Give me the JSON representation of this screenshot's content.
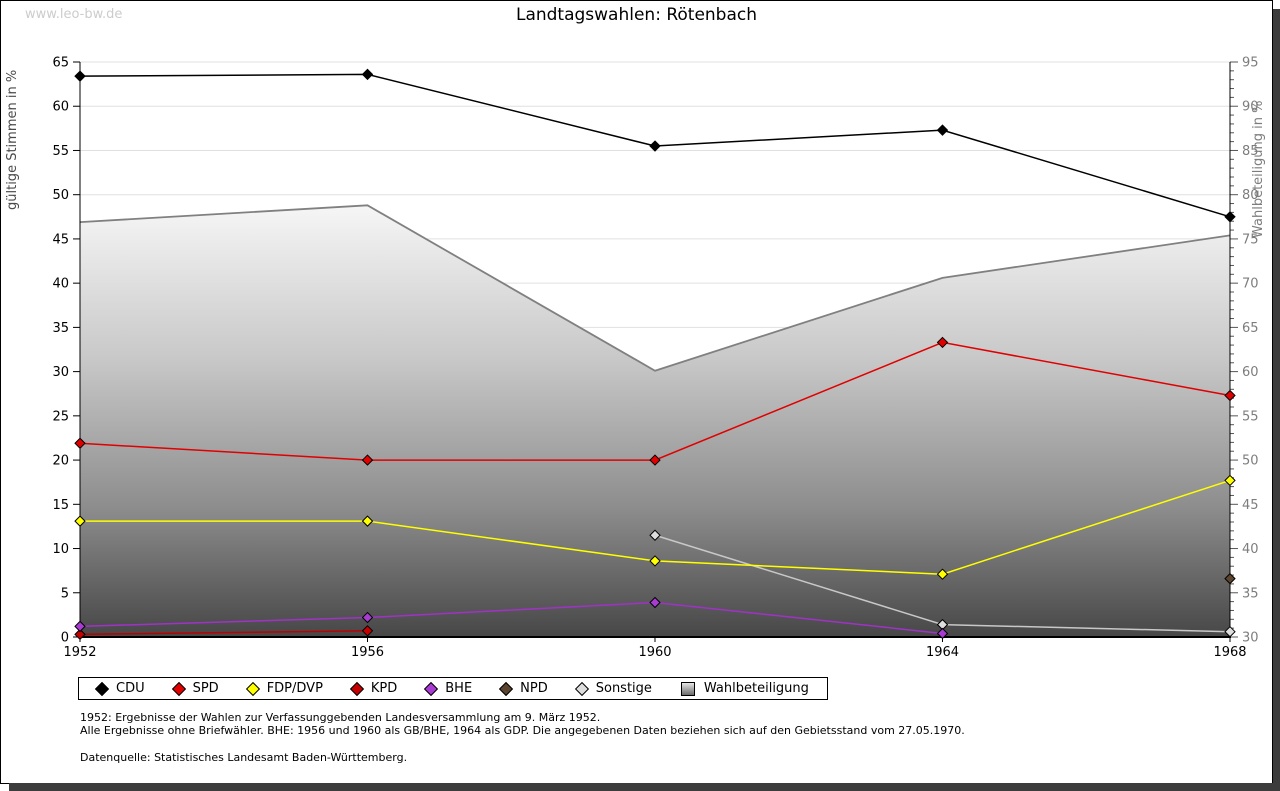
{
  "page": {
    "watermark": "www.leo-bw.de",
    "title": "Landtagswahlen: Rötenbach"
  },
  "chart_data": {
    "type": "line",
    "title": "Landtagswahlen: Rötenbach",
    "x": [
      1952,
      1956,
      1960,
      1964,
      1968
    ],
    "left_axis": {
      "label": "gültige Stimmen in %",
      "min": 0,
      "max": 65,
      "tick_step": 5
    },
    "right_axis": {
      "label": "Wahlbeteiligung in %",
      "min": 30,
      "max": 95,
      "tick_step": 5,
      "minor_tick_step": 1
    },
    "grid": true,
    "legend_position": "bottom",
    "series": [
      {
        "name": "CDU",
        "axis": "left",
        "color": "#000000",
        "marker_fill": "#000000",
        "values": [
          63.4,
          63.6,
          55.5,
          57.3,
          47.5
        ]
      },
      {
        "name": "SPD",
        "axis": "left",
        "color": "#e00000",
        "marker_fill": "#e00000",
        "values": [
          21.9,
          20.0,
          20.0,
          33.3,
          27.3
        ]
      },
      {
        "name": "FDP/DVP",
        "axis": "left",
        "color": "#ffff00",
        "marker_fill": "#ffff00",
        "values": [
          13.1,
          13.1,
          8.6,
          7.1,
          17.7
        ]
      },
      {
        "name": "KPD",
        "axis": "left",
        "color": "#bb0000",
        "marker_fill": "#c40000",
        "values": [
          0.3,
          0.7,
          null,
          null,
          null
        ]
      },
      {
        "name": "BHE",
        "axis": "left",
        "color": "#a032c8",
        "marker_fill": "#a83cd2",
        "values": [
          1.2,
          2.2,
          3.9,
          0.4,
          null
        ]
      },
      {
        "name": "NPD",
        "axis": "left",
        "color": "#5c442e",
        "marker_fill": "#5c442e",
        "values": [
          null,
          null,
          null,
          null,
          6.6
        ]
      },
      {
        "name": "Sonstige",
        "axis": "left",
        "color": "#c8c8c8",
        "marker_fill": "#dedede",
        "values": [
          null,
          null,
          11.5,
          1.4,
          0.6
        ]
      },
      {
        "name": "Wahlbeteiligung",
        "axis": "right",
        "type": "area",
        "color": "#808080",
        "values": [
          76.9,
          78.8,
          60.1,
          70.6,
          75.4
        ]
      }
    ]
  },
  "footnotes": [
    "1952: Ergebnisse der Wahlen zur Verfassunggebenden Landesversammlung am 9. März 1952.",
    "Alle Ergebnisse ohne Briefwähler. BHE: 1956 und 1960 als GB/BHE, 1964 als GDP. Die angegebenen Daten beziehen sich auf den Gebietsstand vom 27.05.1970.",
    "Datenquelle: Statistisches Landesamt Baden-Württemberg."
  ]
}
